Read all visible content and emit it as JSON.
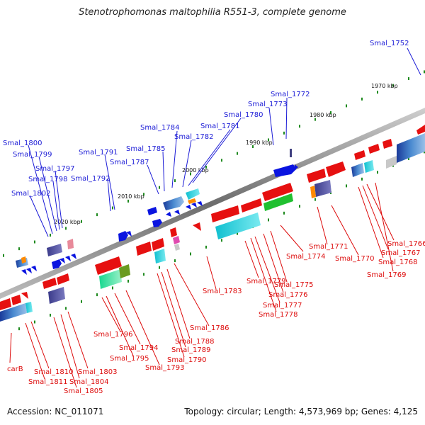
{
  "title": "Stenotrophomonas maltophilia R551-3, complete genome",
  "footer": {
    "accession": "Accession: NC_011071",
    "summary": "Topology: circular; Length: 4,573,969 bp; Genes: 4,125"
  },
  "scale_ticks": [
    "1970 kbp",
    "1980 kbp",
    "1990 kbp",
    "2000 kbp",
    "2010 kbp",
    "2020 kbp"
  ],
  "forward_gene_labels": [
    "Smal_1752",
    "Smal_1772",
    "Smal_1773",
    "Smal_1780",
    "Smal_1781",
    "Smal_1782",
    "Smal_1784",
    "Smal_1785",
    "Smal_1787",
    "Smal_1791",
    "Smal_1792",
    "Smal_1797",
    "Smal_1798",
    "Smal_1799",
    "Smal_1800",
    "Smal_1802"
  ],
  "reverse_gene_labels": [
    "Smal_1766",
    "Smal_1767",
    "Smal_1768",
    "Smal_1769",
    "Smal_1770",
    "Smal_1771",
    "Smal_1774",
    "Smal_1775",
    "Smal_1776",
    "Smal_1777",
    "Smal_1778",
    "Smal_1779",
    "Smal_1783",
    "Smal_1786",
    "Smal_1788",
    "Smal_1789",
    "Smal_1790",
    "Smal_1793",
    "Smal_1794",
    "Smal_1795",
    "Smal_1796",
    "Smal_1803",
    "Smal_1804",
    "Smal_1805",
    "Smal_1810",
    "Smal_1811",
    "carB"
  ],
  "colors": {
    "forward_label": "#1b1bd6",
    "reverse_label": "#dd0b0b",
    "forward_gene": "#0a14e0",
    "reverse_gene": "#e61010",
    "backbone": "#7a7a7a",
    "tick_marks": "#1f8a1f"
  }
}
